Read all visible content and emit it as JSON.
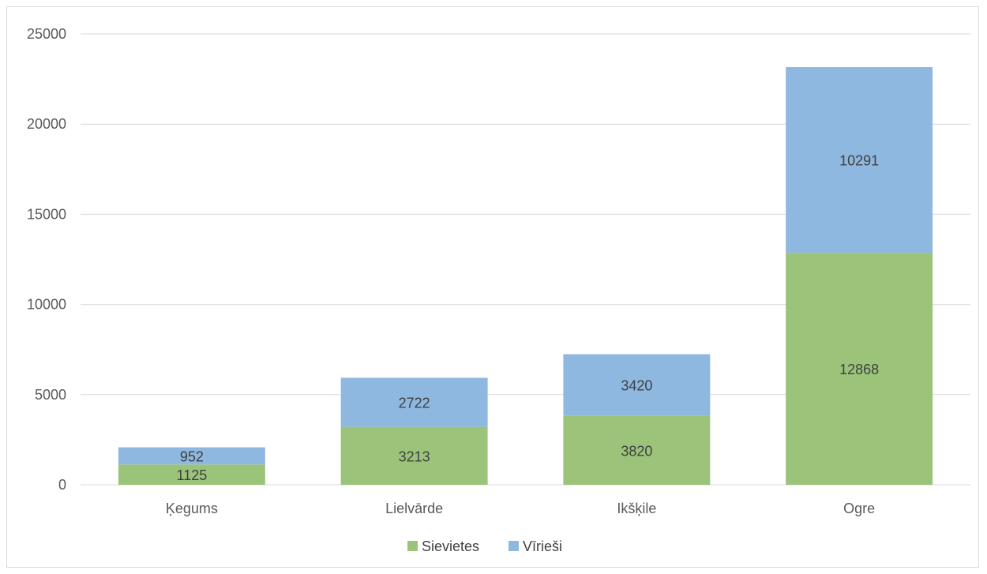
{
  "chart_data": {
    "type": "bar",
    "stacked": true,
    "title": "",
    "xlabel": "",
    "ylabel": "",
    "categories": [
      "Ķegums",
      "Lielvārde",
      "Ikšķile",
      "Ogre"
    ],
    "series": [
      {
        "name": "Sievietes",
        "color": "#9bc47a",
        "values": [
          1125,
          3213,
          3820,
          12868
        ]
      },
      {
        "name": "Vīrieši",
        "color": "#8fb8e0",
        "values": [
          952,
          2722,
          3420,
          10291
        ]
      }
    ],
    "ylim": [
      0,
      25000
    ],
    "yticks": [
      "0",
      "5000",
      "10000",
      "15000",
      "20000",
      "25000"
    ],
    "grid": true,
    "legend_position": "bottom",
    "gridline_color": "#d9d9d9"
  }
}
